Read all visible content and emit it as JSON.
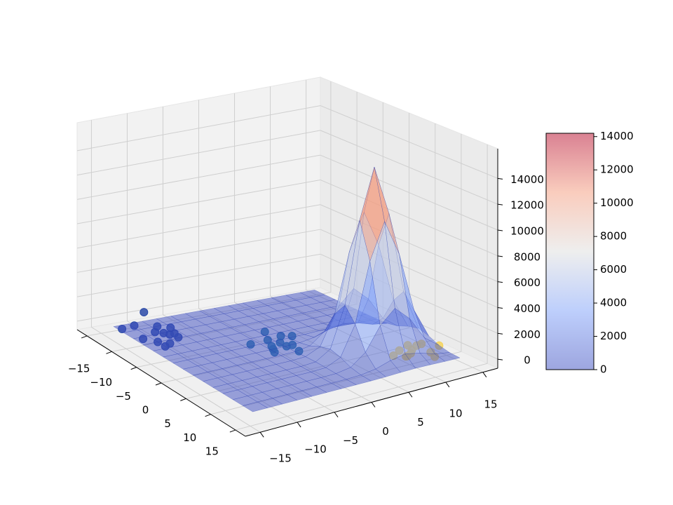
{
  "chart_data": {
    "type": "surface3d",
    "xlim": [
      -17,
      17
    ],
    "ylim": [
      -17,
      17
    ],
    "zlim": [
      -700,
      16300
    ],
    "xticks": [
      {
        "value": -15,
        "label": "−15"
      },
      {
        "value": -10,
        "label": "−10"
      },
      {
        "value": -5,
        "label": "−5"
      },
      0,
      5,
      10,
      15
    ],
    "yticks": [
      {
        "value": -15,
        "label": "−15"
      },
      {
        "value": -10,
        "label": "−10"
      },
      {
        "value": -5,
        "label": "−5"
      },
      0,
      5,
      10,
      15
    ],
    "zticks": [
      0,
      2000,
      4000,
      6000,
      8000,
      10000,
      12000,
      14000
    ],
    "grid": true,
    "surface": {
      "cmap": "coolwarm",
      "alpha": 0.5,
      "edgecolor": "#2a3fb0",
      "x": [
        -14,
        -12,
        -10,
        -8,
        -6,
        -4,
        -2,
        0,
        2,
        4,
        6,
        8,
        10,
        12,
        14
      ],
      "y": [
        -14,
        -12,
        -10,
        -8,
        -6,
        -4,
        -2,
        0,
        2,
        4,
        6,
        8,
        10,
        12,
        14
      ],
      "z": [
        [
          0,
          0,
          0,
          0,
          0,
          0,
          0,
          0,
          0,
          0,
          0,
          0,
          0,
          0,
          0
        ],
        [
          0,
          0,
          0,
          0,
          0,
          0,
          0,
          0,
          0,
          0,
          0,
          0,
          0,
          0,
          0
        ],
        [
          0,
          0,
          0,
          0,
          0,
          0,
          0,
          0,
          0,
          0,
          0,
          0,
          0,
          0,
          0
        ],
        [
          0,
          0,
          0,
          0,
          0,
          0,
          0,
          0,
          0,
          0,
          0,
          0,
          0,
          0,
          0
        ],
        [
          0,
          0,
          0,
          0,
          0,
          0,
          0,
          0,
          0,
          0,
          0,
          0,
          0,
          0,
          0
        ],
        [
          0,
          0,
          0,
          0,
          0,
          0,
          0,
          0,
          0,
          0,
          0,
          0,
          0,
          0,
          0
        ],
        [
          0,
          0,
          0,
          0,
          0,
          0,
          0,
          0,
          0,
          0,
          0,
          0,
          0,
          0,
          0
        ],
        [
          0,
          0,
          0,
          0,
          0,
          0,
          0,
          5,
          24,
          62,
          85,
          62,
          24,
          5,
          0
        ],
        [
          0,
          0,
          0,
          0,
          0,
          0,
          5,
          45,
          220,
          580,
          800,
          580,
          220,
          45,
          5
        ],
        [
          0,
          0,
          0,
          0,
          0,
          0,
          24,
          220,
          1100,
          2870,
          3950,
          2870,
          1100,
          220,
          24
        ],
        [
          0,
          0,
          0,
          0,
          0,
          0,
          62,
          580,
          2870,
          7480,
          10310,
          7480,
          2870,
          580,
          62
        ],
        [
          0,
          0,
          0,
          0,
          0,
          0,
          85,
          800,
          3950,
          10310,
          14200,
          10310,
          3950,
          800,
          85
        ],
        [
          0,
          0,
          0,
          0,
          0,
          0,
          62,
          580,
          2870,
          7480,
          10310,
          7480,
          2870,
          580,
          62
        ],
        [
          0,
          0,
          0,
          0,
          0,
          0,
          24,
          220,
          1100,
          2870,
          3950,
          2870,
          1100,
          220,
          24
        ],
        [
          0,
          0,
          0,
          0,
          0,
          0,
          5,
          45,
          220,
          580,
          800,
          580,
          220,
          45,
          5
        ]
      ]
    },
    "scatter": [
      {
        "color": "#2b4aa8",
        "x": [
          -10,
          -8,
          -11,
          -9,
          -7,
          -12,
          -9.5,
          -8.5,
          -10.5,
          -6.5,
          -11.5,
          -9,
          -13,
          -7.5
        ],
        "y": [
          -11,
          -12,
          -10,
          -9,
          -11,
          -12.5,
          -13,
          -10,
          -8.5,
          -12,
          -11.5,
          -10.5,
          -13.5,
          -9.5
        ],
        "z": [
          200,
          0,
          300,
          100,
          0,
          400,
          0,
          250,
          150,
          0,
          1500,
          300,
          0,
          200
        ]
      },
      {
        "color": "#2878a8",
        "x": [
          -1,
          0,
          -2,
          1,
          -3,
          0.5,
          -1.5,
          2,
          -0.5,
          -2.5,
          1.5,
          -4
        ],
        "y": [
          0,
          1,
          -1,
          -0.5,
          1.5,
          -2,
          2,
          0.5,
          -1.5,
          -3,
          -2.5,
          0
        ],
        "z": [
          100,
          0,
          200,
          300,
          0,
          150,
          250,
          0,
          100,
          0,
          200,
          300
        ]
      },
      {
        "color": "#f5d35a",
        "x": [
          8,
          9,
          10,
          8.5,
          9.5,
          7.5,
          10.5,
          11,
          9,
          8,
          12,
          10
        ],
        "y": [
          10,
          11,
          9.5,
          12,
          10.5,
          11.5,
          12.5,
          9,
          8.5,
          13,
          12,
          14
        ],
        "z": [
          0,
          100,
          0,
          200,
          0,
          100,
          0,
          300,
          0,
          100,
          0,
          200
        ]
      }
    ],
    "colorbar": {
      "lim": [
        0,
        14200
      ],
      "ticks": [
        0,
        2000,
        4000,
        6000,
        8000,
        10000,
        12000,
        14000
      ]
    }
  }
}
